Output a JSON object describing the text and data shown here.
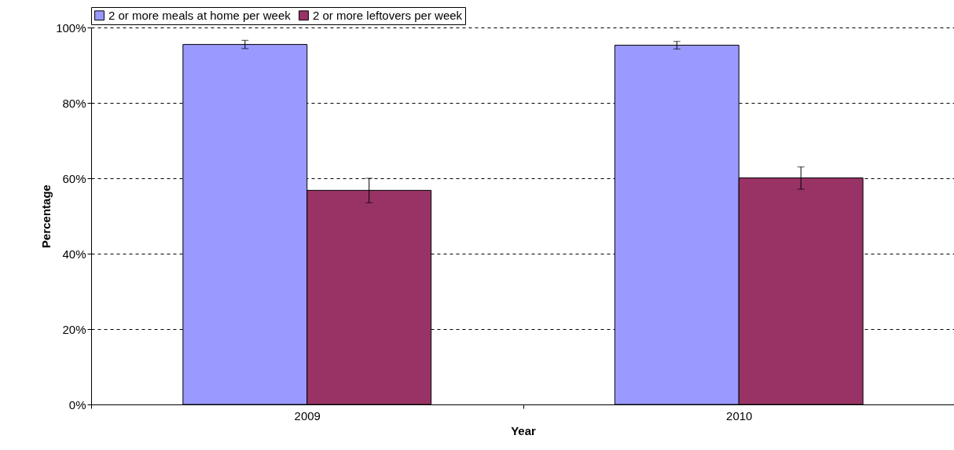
{
  "chart_data": {
    "type": "bar",
    "xlabel": "Year",
    "ylabel": "Percentage",
    "categories": [
      "2009",
      "2010"
    ],
    "series": [
      {
        "name": "2 or more meals at home per week",
        "color": "#9999ff",
        "values": [
          95.5,
          95.3
        ],
        "errors": [
          1.1,
          1.0
        ]
      },
      {
        "name": "2 or more leftovers per week",
        "color": "#993366",
        "values": [
          56.8,
          60.1
        ],
        "errors": [
          [
            53.5,
            60.0
          ],
          [
            57.1,
            63.0
          ]
        ]
      }
    ],
    "ylim": [
      0,
      100
    ],
    "yticks": [
      {
        "value": 0,
        "label": "0%"
      },
      {
        "value": 20,
        "label": "20%"
      },
      {
        "value": 40,
        "label": "40%"
      },
      {
        "value": 60,
        "label": "60%"
      },
      {
        "value": 80,
        "label": "80%"
      },
      {
        "value": 100,
        "label": "100%"
      }
    ],
    "grid": "y",
    "legend": "top"
  }
}
